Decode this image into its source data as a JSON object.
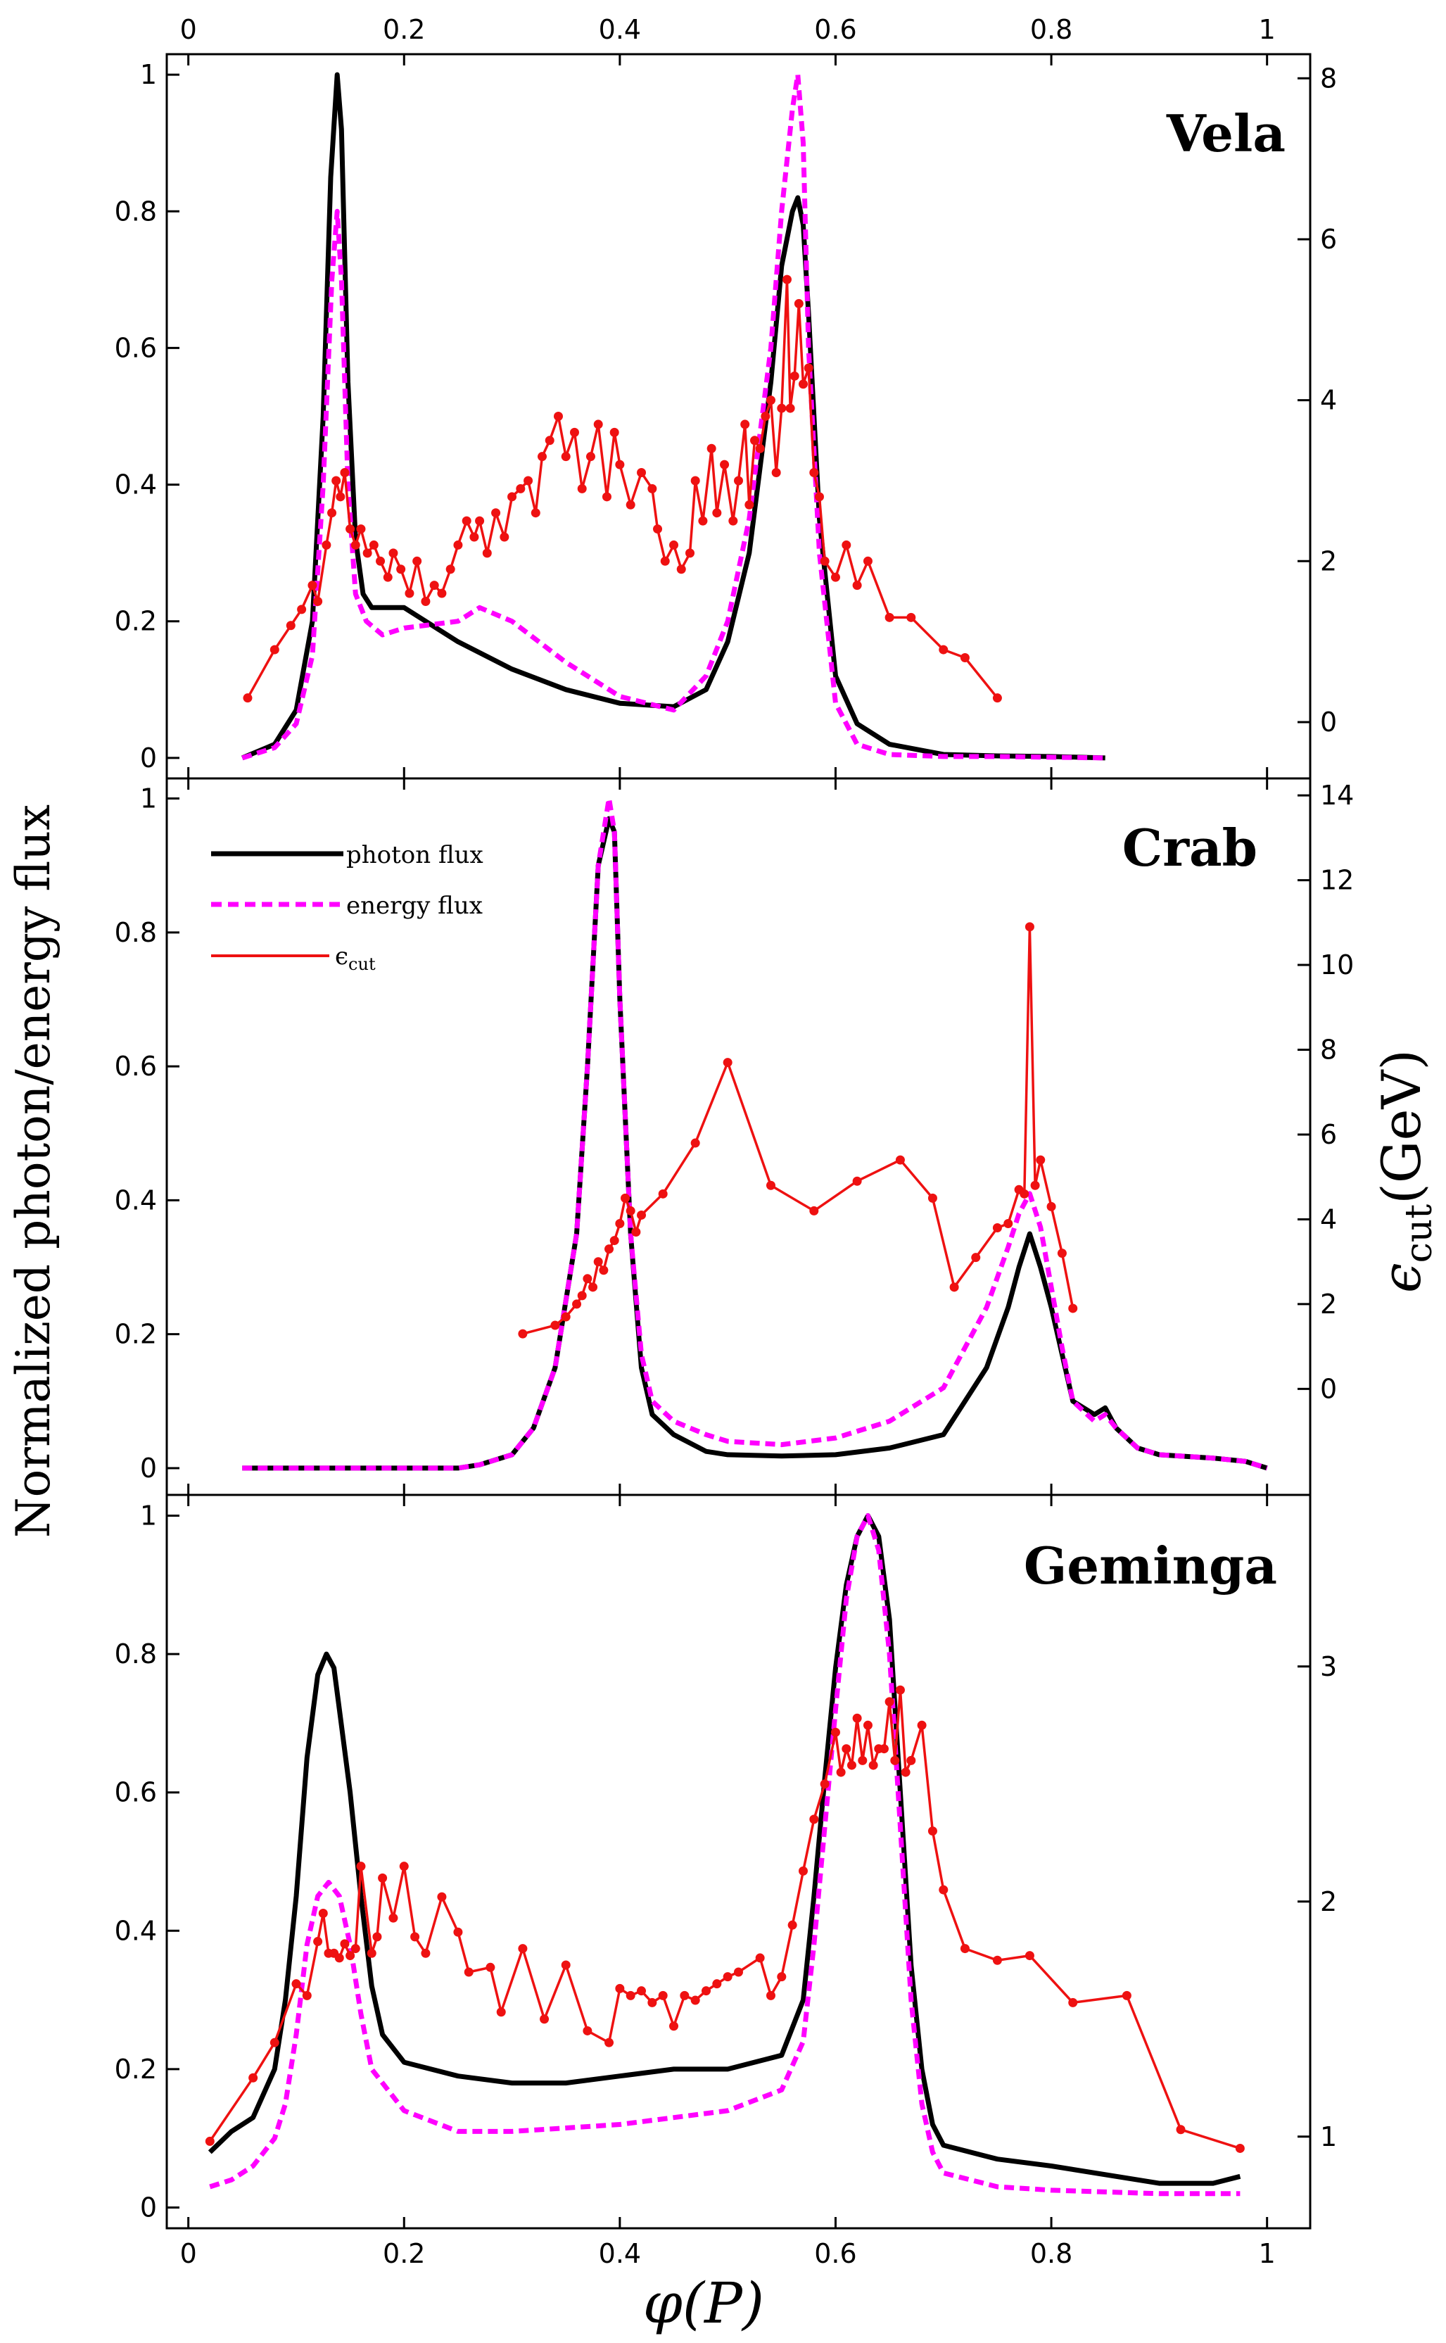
{
  "figure": {
    "ylabel_left": "Normalized photon/energy flux",
    "ylabel_right_symbol": "ϵ",
    "ylabel_right_sub": "cut",
    "ylabel_right_unit": "(GeV)",
    "xlabel_symbol": "φ(P)",
    "x_ticks": [
      "0",
      "0.2",
      "0.4",
      "0.6",
      "0.8",
      "1"
    ],
    "x_tick_values": [
      0,
      0.2,
      0.4,
      0.6,
      0.8,
      1
    ],
    "colors": {
      "photon": "#000000",
      "energy": "#ff00ff",
      "ecut": "#ee1111"
    }
  },
  "legend": {
    "photon": "photon flux",
    "energy": "energy flux",
    "ecut_symbol": "ϵ",
    "ecut_sub": "cut"
  },
  "chart_data": [
    {
      "type": "line",
      "title": "Vela",
      "xlim": [
        -0.02,
        1.04
      ],
      "ylim_left": [
        -0.03,
        1.03
      ],
      "ylim_right": [
        -0.7,
        8.3
      ],
      "left_ticks": [
        0,
        0.2,
        0.4,
        0.6,
        0.8,
        1
      ],
      "right_ticks": [
        0,
        2,
        4,
        6,
        8
      ],
      "series": [
        {
          "name": "photon flux",
          "axis": "left",
          "style": "solid",
          "x": [
            0.05,
            0.08,
            0.1,
            0.115,
            0.125,
            0.132,
            0.138,
            0.142,
            0.148,
            0.155,
            0.162,
            0.17,
            0.18,
            0.2,
            0.22,
            0.25,
            0.3,
            0.35,
            0.4,
            0.45,
            0.48,
            0.5,
            0.52,
            0.54,
            0.55,
            0.56,
            0.565,
            0.57,
            0.575,
            0.585,
            0.6,
            0.62,
            0.65,
            0.7,
            0.75,
            0.8,
            0.85
          ],
          "y": [
            0,
            0.02,
            0.07,
            0.2,
            0.5,
            0.85,
            1.0,
            0.92,
            0.55,
            0.32,
            0.24,
            0.22,
            0.22,
            0.22,
            0.2,
            0.17,
            0.13,
            0.1,
            0.08,
            0.075,
            0.1,
            0.17,
            0.3,
            0.55,
            0.72,
            0.8,
            0.82,
            0.78,
            0.65,
            0.35,
            0.12,
            0.05,
            0.02,
            0.005,
            0.003,
            0.002,
            0
          ]
        },
        {
          "name": "energy flux",
          "axis": "left",
          "style": "dashed",
          "x": [
            0.05,
            0.08,
            0.1,
            0.115,
            0.125,
            0.133,
            0.138,
            0.142,
            0.148,
            0.155,
            0.165,
            0.18,
            0.2,
            0.25,
            0.27,
            0.3,
            0.35,
            0.4,
            0.45,
            0.48,
            0.5,
            0.52,
            0.54,
            0.55,
            0.56,
            0.565,
            0.57,
            0.575,
            0.585,
            0.6,
            0.62,
            0.65,
            0.7,
            0.75,
            0.8,
            0.85
          ],
          "y": [
            0,
            0.015,
            0.05,
            0.15,
            0.4,
            0.7,
            0.8,
            0.7,
            0.4,
            0.24,
            0.2,
            0.18,
            0.19,
            0.2,
            0.22,
            0.2,
            0.14,
            0.09,
            0.07,
            0.12,
            0.2,
            0.35,
            0.6,
            0.8,
            0.95,
            1.0,
            0.9,
            0.6,
            0.3,
            0.08,
            0.02,
            0.005,
            0.002,
            0.002,
            0.001,
            0
          ]
        },
        {
          "name": "ecut",
          "axis": "right",
          "style": "solid-markers",
          "x": [
            0.055,
            0.08,
            0.095,
            0.105,
            0.115,
            0.12,
            0.128,
            0.133,
            0.137,
            0.141,
            0.145,
            0.15,
            0.155,
            0.16,
            0.166,
            0.172,
            0.178,
            0.185,
            0.19,
            0.197,
            0.205,
            0.212,
            0.22,
            0.228,
            0.235,
            0.243,
            0.25,
            0.258,
            0.265,
            0.27,
            0.277,
            0.285,
            0.293,
            0.3,
            0.308,
            0.315,
            0.322,
            0.328,
            0.335,
            0.343,
            0.35,
            0.358,
            0.365,
            0.373,
            0.38,
            0.388,
            0.395,
            0.4,
            0.41,
            0.42,
            0.43,
            0.435,
            0.442,
            0.45,
            0.457,
            0.465,
            0.47,
            0.477,
            0.485,
            0.49,
            0.497,
            0.505,
            0.51,
            0.516,
            0.52,
            0.525,
            0.53,
            0.535,
            0.54,
            0.545,
            0.55,
            0.555,
            0.558,
            0.562,
            0.566,
            0.57,
            0.575,
            0.58,
            0.585,
            0.59,
            0.6,
            0.61,
            0.62,
            0.63,
            0.65,
            0.67,
            0.7,
            0.72,
            0.75
          ],
          "y": [
            0.3,
            0.9,
            1.2,
            1.4,
            1.7,
            1.5,
            2.2,
            2.6,
            3.0,
            2.8,
            3.1,
            2.4,
            2.2,
            2.4,
            2.1,
            2.2,
            2.0,
            1.8,
            2.1,
            1.9,
            1.6,
            2.0,
            1.5,
            1.7,
            1.6,
            1.9,
            2.2,
            2.5,
            2.3,
            2.5,
            2.1,
            2.6,
            2.3,
            2.8,
            2.9,
            3.0,
            2.6,
            3.3,
            3.5,
            3.8,
            3.3,
            3.6,
            2.9,
            3.3,
            3.7,
            2.8,
            3.6,
            3.2,
            2.7,
            3.1,
            2.9,
            2.4,
            2.0,
            2.2,
            1.9,
            2.1,
            3.0,
            2.5,
            3.4,
            2.6,
            3.2,
            2.5,
            3.0,
            3.7,
            2.7,
            3.5,
            3.4,
            3.8,
            4.0,
            3.1,
            3.9,
            5.5,
            3.9,
            4.3,
            5.2,
            4.2,
            4.4,
            3.1,
            2.8,
            2.0,
            1.8,
            2.2,
            1.7,
            2.0,
            1.3,
            1.3,
            0.9,
            0.8,
            0.3
          ]
        }
      ]
    },
    {
      "type": "line",
      "title": "Crab",
      "xlim": [
        -0.02,
        1.04
      ],
      "ylim_left": [
        -0.04,
        1.03
      ],
      "ylim_right": [
        -2.5,
        14.4
      ],
      "left_ticks": [
        0,
        0.2,
        0.4,
        0.6,
        0.8,
        1
      ],
      "right_ticks": [
        0,
        2,
        4,
        6,
        8,
        10,
        12,
        14
      ],
      "series": [
        {
          "name": "photon flux",
          "axis": "left",
          "style": "solid",
          "x": [
            0.05,
            0.1,
            0.2,
            0.25,
            0.27,
            0.3,
            0.32,
            0.34,
            0.36,
            0.37,
            0.38,
            0.39,
            0.395,
            0.4,
            0.41,
            0.42,
            0.43,
            0.45,
            0.48,
            0.5,
            0.55,
            0.6,
            0.65,
            0.7,
            0.74,
            0.76,
            0.77,
            0.78,
            0.79,
            0.8,
            0.81,
            0.82,
            0.84,
            0.85,
            0.86,
            0.88,
            0.9,
            0.95,
            0.98,
            1.0
          ],
          "y": [
            0,
            0,
            0,
            0,
            0.005,
            0.02,
            0.06,
            0.15,
            0.35,
            0.6,
            0.9,
            0.97,
            0.95,
            0.7,
            0.35,
            0.15,
            0.08,
            0.05,
            0.025,
            0.02,
            0.018,
            0.02,
            0.03,
            0.05,
            0.15,
            0.24,
            0.3,
            0.35,
            0.3,
            0.24,
            0.17,
            0.1,
            0.08,
            0.09,
            0.06,
            0.03,
            0.02,
            0.015,
            0.01,
            0
          ]
        },
        {
          "name": "energy flux",
          "axis": "left",
          "style": "dashed",
          "x": [
            0.05,
            0.1,
            0.2,
            0.25,
            0.27,
            0.3,
            0.32,
            0.34,
            0.36,
            0.37,
            0.38,
            0.39,
            0.395,
            0.4,
            0.41,
            0.42,
            0.43,
            0.45,
            0.48,
            0.5,
            0.55,
            0.6,
            0.65,
            0.7,
            0.74,
            0.76,
            0.77,
            0.78,
            0.79,
            0.8,
            0.81,
            0.82,
            0.84,
            0.85,
            0.86,
            0.88,
            0.9,
            0.95,
            0.98,
            1.0
          ],
          "y": [
            0,
            0,
            0,
            0,
            0.005,
            0.02,
            0.06,
            0.15,
            0.35,
            0.6,
            0.9,
            1.0,
            0.95,
            0.7,
            0.35,
            0.17,
            0.1,
            0.07,
            0.05,
            0.04,
            0.035,
            0.045,
            0.07,
            0.12,
            0.24,
            0.33,
            0.38,
            0.41,
            0.36,
            0.27,
            0.18,
            0.1,
            0.07,
            0.08,
            0.06,
            0.03,
            0.02,
            0.015,
            0.01,
            0
          ]
        },
        {
          "name": "ecut",
          "axis": "right",
          "style": "solid-markers",
          "x": [
            0.31,
            0.34,
            0.35,
            0.36,
            0.365,
            0.37,
            0.375,
            0.38,
            0.385,
            0.39,
            0.395,
            0.4,
            0.405,
            0.41,
            0.415,
            0.42,
            0.44,
            0.47,
            0.5,
            0.54,
            0.58,
            0.62,
            0.66,
            0.69,
            0.71,
            0.73,
            0.75,
            0.76,
            0.77,
            0.775,
            0.78,
            0.785,
            0.79,
            0.8,
            0.81,
            0.82
          ],
          "y": [
            1.3,
            1.5,
            1.7,
            2.0,
            2.2,
            2.6,
            2.4,
            3.0,
            2.8,
            3.3,
            3.5,
            3.9,
            4.5,
            4.2,
            3.7,
            4.1,
            4.6,
            5.8,
            7.7,
            4.8,
            4.2,
            4.9,
            5.4,
            4.5,
            2.4,
            3.1,
            3.8,
            3.9,
            4.7,
            4.6,
            10.9,
            4.8,
            5.4,
            4.3,
            3.2,
            1.9
          ]
        }
      ]
    },
    {
      "type": "line",
      "title": "Geminga",
      "xlim": [
        -0.02,
        1.04
      ],
      "ylim_left": [
        -0.03,
        1.03
      ],
      "ylim_right": [
        0.61,
        3.73
      ],
      "left_ticks": [
        0,
        0.2,
        0.4,
        0.6,
        0.8,
        1
      ],
      "right_ticks": [
        1,
        2,
        3
      ],
      "series": [
        {
          "name": "photon flux",
          "axis": "left",
          "style": "solid",
          "x": [
            0.02,
            0.04,
            0.06,
            0.08,
            0.09,
            0.1,
            0.11,
            0.12,
            0.128,
            0.135,
            0.14,
            0.15,
            0.16,
            0.17,
            0.18,
            0.2,
            0.25,
            0.3,
            0.35,
            0.4,
            0.45,
            0.5,
            0.55,
            0.57,
            0.58,
            0.59,
            0.6,
            0.61,
            0.62,
            0.63,
            0.64,
            0.65,
            0.66,
            0.67,
            0.68,
            0.69,
            0.7,
            0.75,
            0.8,
            0.9,
            0.95,
            0.975
          ],
          "y": [
            0.08,
            0.11,
            0.13,
            0.2,
            0.3,
            0.45,
            0.65,
            0.77,
            0.8,
            0.78,
            0.72,
            0.6,
            0.45,
            0.32,
            0.25,
            0.21,
            0.19,
            0.18,
            0.18,
            0.19,
            0.2,
            0.2,
            0.22,
            0.3,
            0.45,
            0.62,
            0.78,
            0.9,
            0.97,
            1.0,
            0.97,
            0.85,
            0.6,
            0.35,
            0.2,
            0.12,
            0.09,
            0.07,
            0.06,
            0.035,
            0.035,
            0.045
          ]
        },
        {
          "name": "energy flux",
          "axis": "left",
          "style": "dashed",
          "x": [
            0.02,
            0.04,
            0.06,
            0.08,
            0.09,
            0.1,
            0.11,
            0.12,
            0.13,
            0.14,
            0.15,
            0.16,
            0.17,
            0.2,
            0.25,
            0.3,
            0.35,
            0.4,
            0.45,
            0.5,
            0.55,
            0.57,
            0.58,
            0.59,
            0.6,
            0.61,
            0.62,
            0.63,
            0.64,
            0.65,
            0.66,
            0.67,
            0.68,
            0.69,
            0.7,
            0.75,
            0.8,
            0.9,
            0.975
          ],
          "y": [
            0.03,
            0.04,
            0.06,
            0.1,
            0.15,
            0.25,
            0.38,
            0.45,
            0.47,
            0.45,
            0.38,
            0.28,
            0.2,
            0.14,
            0.11,
            0.11,
            0.115,
            0.12,
            0.13,
            0.14,
            0.17,
            0.24,
            0.38,
            0.55,
            0.72,
            0.88,
            0.97,
            1.0,
            0.95,
            0.8,
            0.55,
            0.3,
            0.15,
            0.08,
            0.05,
            0.03,
            0.025,
            0.02,
            0.02
          ]
        },
        {
          "name": "ecut",
          "axis": "right",
          "style": "solid-markers",
          "x": [
            0.02,
            0.06,
            0.08,
            0.1,
            0.11,
            0.12,
            0.125,
            0.13,
            0.135,
            0.14,
            0.145,
            0.15,
            0.155,
            0.16,
            0.17,
            0.175,
            0.18,
            0.19,
            0.2,
            0.21,
            0.22,
            0.235,
            0.25,
            0.26,
            0.28,
            0.29,
            0.31,
            0.33,
            0.35,
            0.37,
            0.39,
            0.4,
            0.41,
            0.42,
            0.43,
            0.44,
            0.45,
            0.46,
            0.47,
            0.48,
            0.49,
            0.5,
            0.51,
            0.53,
            0.54,
            0.55,
            0.56,
            0.57,
            0.58,
            0.59,
            0.6,
            0.605,
            0.61,
            0.615,
            0.62,
            0.625,
            0.63,
            0.635,
            0.64,
            0.645,
            0.65,
            0.655,
            0.66,
            0.665,
            0.67,
            0.68,
            0.69,
            0.7,
            0.72,
            0.75,
            0.78,
            0.82,
            0.87,
            0.92,
            0.975
          ],
          "y": [
            0.98,
            1.25,
            1.4,
            1.65,
            1.6,
            1.83,
            1.95,
            1.78,
            1.78,
            1.76,
            1.82,
            1.77,
            1.8,
            2.15,
            1.78,
            1.85,
            2.1,
            1.93,
            2.15,
            1.85,
            1.78,
            2.02,
            1.87,
            1.7,
            1.72,
            1.53,
            1.8,
            1.5,
            1.73,
            1.45,
            1.4,
            1.63,
            1.6,
            1.62,
            1.57,
            1.6,
            1.47,
            1.6,
            1.58,
            1.62,
            1.65,
            1.68,
            1.7,
            1.76,
            1.6,
            1.68,
            1.9,
            2.13,
            2.35,
            2.5,
            2.72,
            2.55,
            2.65,
            2.58,
            2.78,
            2.6,
            2.75,
            2.58,
            2.65,
            2.65,
            2.85,
            2.6,
            2.9,
            2.55,
            2.6,
            2.75,
            2.3,
            2.05,
            1.8,
            1.75,
            1.77,
            1.57,
            1.6,
            1.03,
            0.95
          ]
        }
      ]
    }
  ]
}
